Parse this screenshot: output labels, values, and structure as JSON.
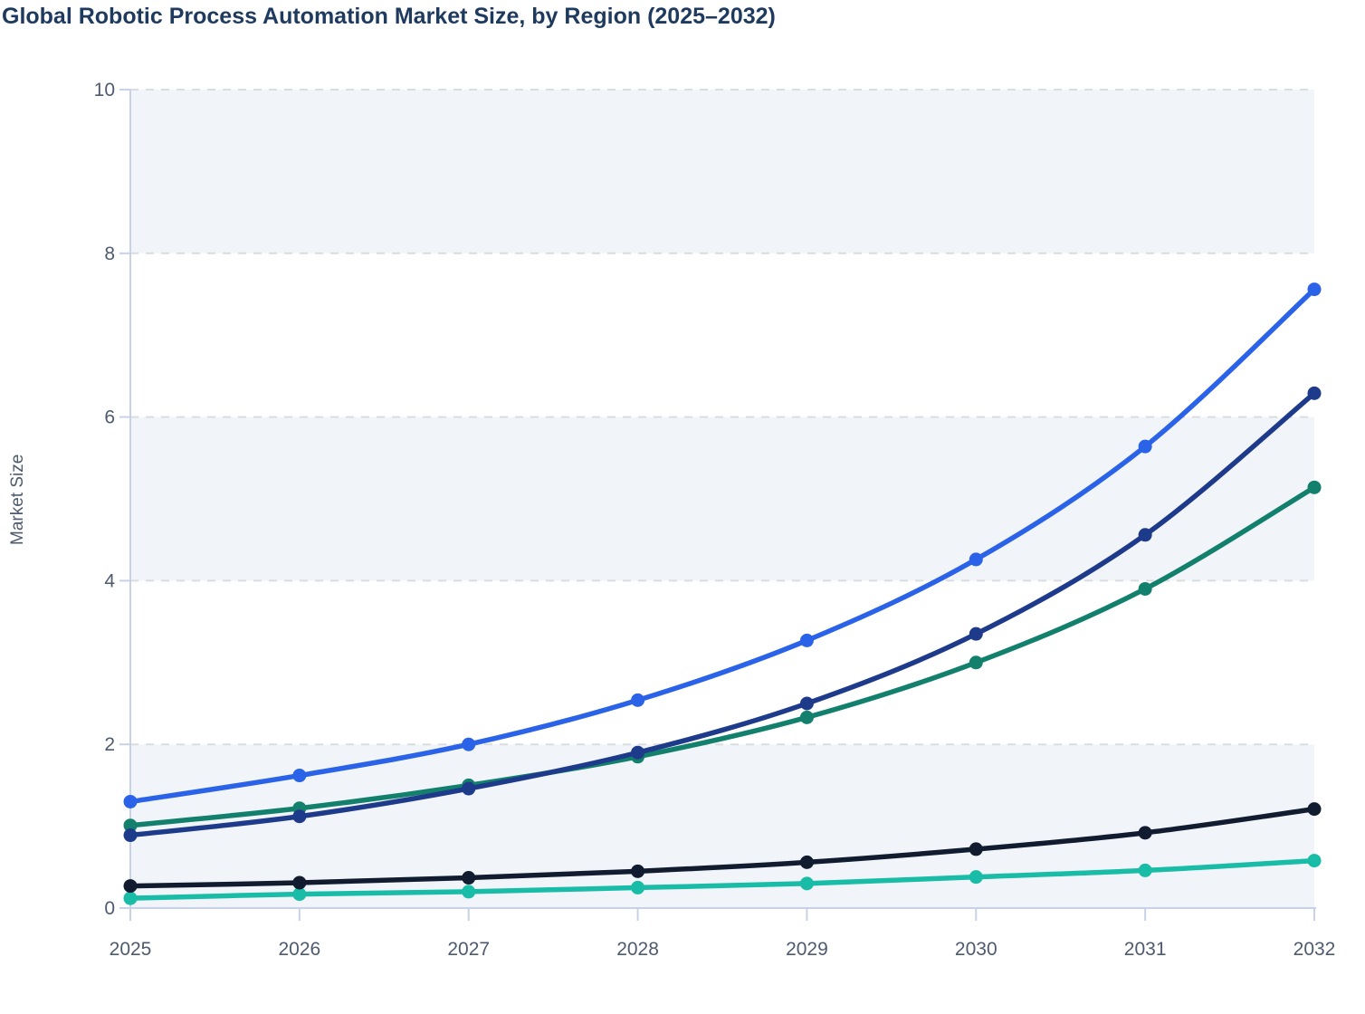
{
  "title": "Global Robotic Process Automation Market Size, by Region (2025–2032)",
  "chart_data": {
    "type": "line",
    "title": "Global Robotic Process Automation Market Size, by Region (2025–2032)",
    "xlabel": "",
    "ylabel": "Market Size",
    "x": [
      2025,
      2026,
      2027,
      2028,
      2029,
      2030,
      2031,
      2032
    ],
    "ylim": [
      0,
      10
    ],
    "yticks": [
      0,
      2,
      4,
      6,
      8,
      10
    ],
    "grid": "horizontal-dashed",
    "legend": "none",
    "background_bands": [
      [
        0,
        2
      ],
      [
        4,
        6
      ],
      [
        8,
        10
      ]
    ],
    "series": [
      {
        "name": "series-blue",
        "color": "#2b63e8",
        "values": [
          1.3,
          1.62,
          2.0,
          2.54,
          3.27,
          4.26,
          5.64,
          7.56
        ]
      },
      {
        "name": "series-navy",
        "color": "#1e3a8a",
        "values": [
          0.89,
          1.12,
          1.46,
          1.9,
          2.5,
          3.35,
          4.56,
          6.29
        ]
      },
      {
        "name": "series-green",
        "color": "#12806c",
        "values": [
          1.01,
          1.22,
          1.5,
          1.85,
          2.33,
          3.0,
          3.9,
          5.14
        ]
      },
      {
        "name": "series-black",
        "color": "#111c30",
        "values": [
          0.27,
          0.31,
          0.37,
          0.45,
          0.56,
          0.72,
          0.92,
          1.21
        ]
      },
      {
        "name": "series-teal",
        "color": "#19bca6",
        "values": [
          0.12,
          0.17,
          0.2,
          0.25,
          0.3,
          0.38,
          0.46,
          0.58
        ]
      }
    ],
    "colors": {
      "band": "#f1f4f8",
      "gridline": "#d9dde2",
      "axis": "#c7d2e8",
      "tick_label": "#4e5a6e",
      "title": "#1f3a5f"
    }
  }
}
